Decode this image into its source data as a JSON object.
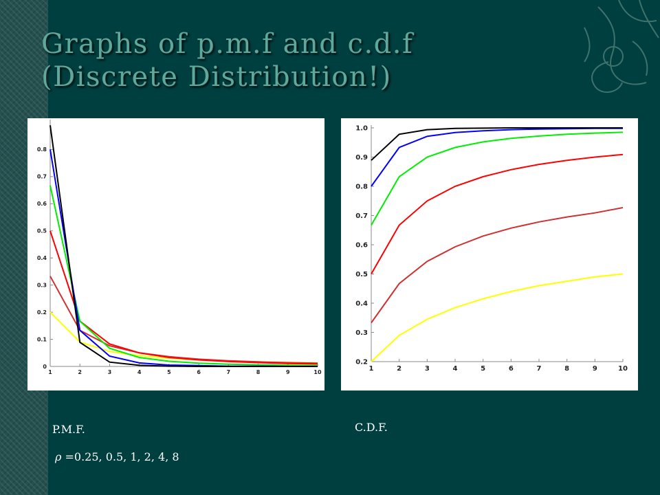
{
  "slide": {
    "title_line1": "Graphs of p.m.f and c.d.f",
    "title_line2": "(Discrete Distribution!)",
    "pmf_caption": "P.M.F.",
    "cdf_caption": "C.D.F.",
    "rho_symbol": "ρ",
    "rho_values": " =0.25, 0.5, 1, 2, 4, 8"
  },
  "colors": {
    "background": "#003f3f",
    "title": "#5fa89c",
    "series": [
      "#ffff00",
      "#d03030",
      "#ff0000",
      "#00ee00",
      "#0000ff",
      "#000000"
    ]
  },
  "chart_data": [
    {
      "type": "line",
      "title": "",
      "xlabel": "",
      "ylabel": "",
      "x": [
        1,
        2,
        3,
        4,
        5,
        6,
        7,
        8,
        9,
        10
      ],
      "xlim": [
        1,
        10
      ],
      "ylim": [
        0,
        0.9
      ],
      "yticks": [
        0,
        0.1,
        0.2,
        0.3,
        0.4,
        0.5,
        0.6,
        0.7,
        0.8
      ],
      "ytick_labels": [
        "0",
        "0.1",
        "0.2",
        "0.3",
        "0.4",
        "0.5",
        "0.6",
        "0.7",
        "0.8"
      ],
      "xtick_labels": [
        "1",
        "2",
        "3",
        "4",
        "5",
        "6",
        "7",
        "8",
        "9",
        "10"
      ],
      "grid": false,
      "legend": "none",
      "series": [
        {
          "color": "#ffff00",
          "values": [
            0.2,
            0.09,
            0.055,
            0.04,
            0.03,
            0.024,
            0.02,
            0.017,
            0.015,
            0.013
          ]
        },
        {
          "color": "#d03030",
          "values": [
            0.333,
            0.133,
            0.076,
            0.05,
            0.036,
            0.027,
            0.021,
            0.017,
            0.014,
            0.012
          ]
        },
        {
          "color": "#ff0000",
          "values": [
            0.5,
            0.167,
            0.083,
            0.05,
            0.033,
            0.024,
            0.018,
            0.014,
            0.011,
            0.009
          ]
        },
        {
          "color": "#00ee00",
          "values": [
            0.667,
            0.167,
            0.067,
            0.033,
            0.019,
            0.012,
            0.008,
            0.006,
            0.004,
            0.003
          ]
        },
        {
          "color": "#0000ff",
          "values": [
            0.8,
            0.133,
            0.038,
            0.013,
            0.005,
            0.003,
            0.001,
            0.001,
            0.0,
            0.0
          ]
        },
        {
          "color": "#000000",
          "values": [
            0.889,
            0.089,
            0.016,
            0.004,
            0.001,
            0.0,
            0.0,
            0.0,
            0.0,
            0.0
          ]
        }
      ]
    },
    {
      "type": "line",
      "title": "",
      "xlabel": "",
      "ylabel": "",
      "x": [
        1,
        2,
        3,
        4,
        5,
        6,
        7,
        8,
        9,
        10
      ],
      "xlim": [
        1,
        10
      ],
      "ylim": [
        0.2,
        1.0
      ],
      "yticks": [
        0.2,
        0.3,
        0.4,
        0.5,
        0.6,
        0.7,
        0.8,
        0.9,
        1.0
      ],
      "ytick_labels": [
        "0.2",
        "0.3",
        "0.4",
        "0.5",
        "0.6",
        "0.7",
        "0.8",
        "0.9",
        "1.0"
      ],
      "xtick_labels": [
        "1",
        "2",
        "3",
        "4",
        "5",
        "6",
        "7",
        "8",
        "9",
        "10"
      ],
      "grid": false,
      "legend": "none",
      "series": [
        {
          "color": "#ffff00",
          "values": [
            0.2,
            0.29,
            0.345,
            0.385,
            0.415,
            0.44,
            0.46,
            0.475,
            0.49,
            0.5
          ]
        },
        {
          "color": "#d03030",
          "values": [
            0.333,
            0.467,
            0.543,
            0.593,
            0.63,
            0.657,
            0.678,
            0.695,
            0.709,
            0.727
          ]
        },
        {
          "color": "#ff0000",
          "values": [
            0.5,
            0.667,
            0.75,
            0.8,
            0.833,
            0.857,
            0.875,
            0.889,
            0.9,
            0.909
          ]
        },
        {
          "color": "#00ee00",
          "values": [
            0.667,
            0.833,
            0.9,
            0.933,
            0.952,
            0.964,
            0.972,
            0.978,
            0.982,
            0.985
          ]
        },
        {
          "color": "#0000ff",
          "values": [
            0.8,
            0.933,
            0.971,
            0.984,
            0.99,
            0.994,
            0.996,
            0.997,
            0.998,
            0.998
          ]
        },
        {
          "color": "#000000",
          "values": [
            0.889,
            0.978,
            0.994,
            0.998,
            0.999,
            1.0,
            1.0,
            1.0,
            1.0,
            1.0
          ]
        }
      ]
    }
  ]
}
